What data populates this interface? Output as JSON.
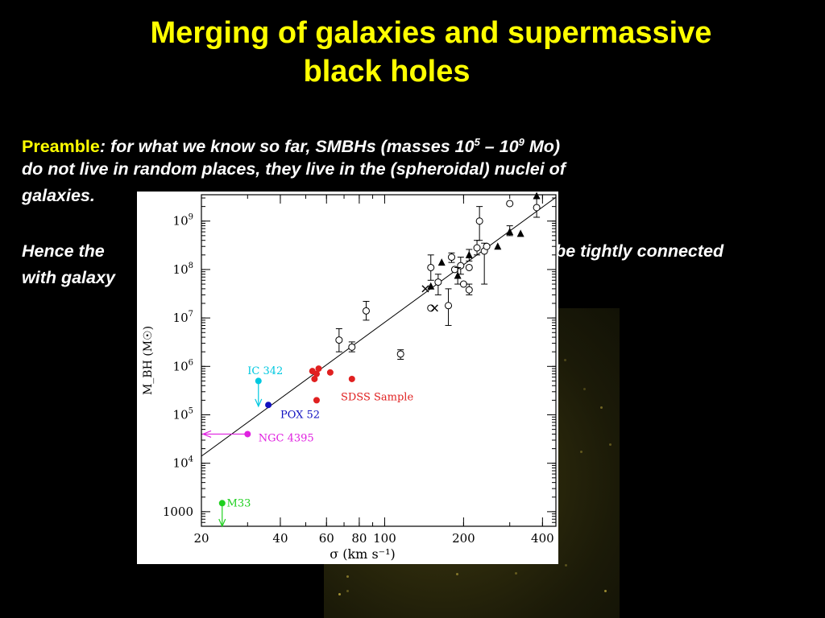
{
  "slide": {
    "title_lines": [
      "Merging of galaxies and supermassive",
      "black holes"
    ],
    "preamble_label": "Preamble",
    "preamble_line1_pre": ": for what we know so far, SMBHs (masses 10",
    "preamble_exp1": "5",
    "preamble_line1_mid": " – 10",
    "preamble_exp2": "9",
    "preamble_line1_post": " Mo)",
    "preamble_line2": "do not live in random places,  they live in the (spheroidal) nuclei of",
    "preamble_line3": "galaxies.",
    "hence_line1_left": "Hence the",
    "hence_line1_right": "st be tightly connected",
    "hence_line2": "with galaxy"
  },
  "chart_data": {
    "type": "scatter",
    "xlabel": "σ (km s⁻¹)",
    "ylabel": "M_BH (M☉)",
    "x_scale": "log",
    "y_scale": "log",
    "xlim": [
      20,
      450
    ],
    "ylim": [
      500,
      3500000000
    ],
    "x_tick_labels": [
      {
        "value": 20,
        "label": "20"
      },
      {
        "value": 40,
        "label": "40"
      },
      {
        "value": 60,
        "label": "60"
      },
      {
        "value": 80,
        "label": "80"
      },
      {
        "value": 100,
        "label": "100"
      },
      {
        "value": 200,
        "label": "200"
      },
      {
        "value": 400,
        "label": "400"
      }
    ],
    "y_tick_labels": [
      {
        "value": 1000,
        "label": "1000"
      },
      {
        "value": 10000,
        "label": "10",
        "exp": "4"
      },
      {
        "value": 100000,
        "label": "10",
        "exp": "5"
      },
      {
        "value": 1000000,
        "label": "10",
        "exp": "6"
      },
      {
        "value": 10000000,
        "label": "10",
        "exp": "7"
      },
      {
        "value": 100000000,
        "label": "10",
        "exp": "8"
      },
      {
        "value": 1000000000,
        "label": "10",
        "exp": "9"
      }
    ],
    "fit_line": {
      "x": [
        20,
        450
      ],
      "y": [
        14000,
        3100000000
      ]
    },
    "series": [
      {
        "marker": "open-circle",
        "color": "#000000",
        "points": [
          {
            "x": 67,
            "y": 3500000,
            "err": [
              2000000,
              6000000
            ]
          },
          {
            "x": 75,
            "y": 2500000,
            "err": [
              2000000,
              3200000
            ]
          },
          {
            "x": 85,
            "y": 14000000,
            "err": [
              9000000,
              22000000
            ]
          },
          {
            "x": 115,
            "y": 1800000,
            "err": [
              1400000,
              2200000
            ]
          },
          {
            "x": 150,
            "y": 110000000,
            "err": [
              60000000,
              200000000
            ]
          },
          {
            "x": 150,
            "y": 16000000
          },
          {
            "x": 160,
            "y": 55000000,
            "err": [
              30000000,
              80000000
            ]
          },
          {
            "x": 175,
            "y": 18000000,
            "err": [
              7000000,
              40000000
            ]
          },
          {
            "x": 180,
            "y": 180000000,
            "err": [
              140000000,
              220000000
            ]
          },
          {
            "x": 185,
            "y": 100000000
          },
          {
            "x": 195,
            "y": 120000000,
            "err": [
              80000000,
              180000000
            ]
          },
          {
            "x": 200,
            "y": 50000000
          },
          {
            "x": 210,
            "y": 110000000
          },
          {
            "x": 210,
            "y": 38000000,
            "err": [
              30000000,
              50000000
            ]
          },
          {
            "x": 225,
            "y": 280000000,
            "err": [
              200000000,
              400000000
            ]
          },
          {
            "x": 230,
            "y": 1000000000,
            "err": [
              400000000,
              2000000000
            ]
          },
          {
            "x": 240,
            "y": 240000000,
            "err": [
              50000000,
              350000000
            ]
          },
          {
            "x": 245,
            "y": 300000000
          },
          {
            "x": 300,
            "y": 2300000000
          },
          {
            "x": 380,
            "y": 1900000000,
            "err": [
              1200000000,
              3000000000
            ]
          }
        ]
      },
      {
        "marker": "filled-triangle",
        "color": "#000000",
        "points": [
          {
            "x": 150,
            "y": 45000000
          },
          {
            "x": 165,
            "y": 140000000
          },
          {
            "x": 190,
            "y": 75000000,
            "err": [
              50000000,
              110000000
            ]
          },
          {
            "x": 210,
            "y": 200000000,
            "err": [
              150000000,
              260000000
            ]
          },
          {
            "x": 270,
            "y": 300000000
          },
          {
            "x": 300,
            "y": 600000000,
            "err": [
              500000000,
              800000000
            ]
          },
          {
            "x": 330,
            "y": 550000000
          },
          {
            "x": 380,
            "y": 3300000000
          }
        ]
      },
      {
        "marker": "cross",
        "color": "#000000",
        "points": [
          {
            "x": 143,
            "y": 40000000
          },
          {
            "x": 155,
            "y": 16000000
          }
        ]
      },
      {
        "name": "SDSS Sample",
        "marker": "filled-circle",
        "color": "#e02020",
        "points": [
          {
            "x": 53,
            "y": 800000
          },
          {
            "x": 54,
            "y": 550000
          },
          {
            "x": 55,
            "y": 700000
          },
          {
            "x": 56,
            "y": 900000
          },
          {
            "x": 55,
            "y": 200000
          },
          {
            "x": 62,
            "y": 750000
          },
          {
            "x": 75,
            "y": 550000
          }
        ]
      },
      {
        "name": "IC 342",
        "marker": "filled-circle",
        "color": "#00c8e0",
        "points": [
          {
            "x": 33,
            "y": 500000,
            "upper_limit_to": 150000
          }
        ]
      },
      {
        "name": "POX 52",
        "marker": "filled-circle",
        "color": "#1010c0",
        "points": [
          {
            "x": 36,
            "y": 160000
          }
        ]
      },
      {
        "name": "NGC 4395",
        "marker": "filled-circle",
        "color": "#e020e0",
        "points": [
          {
            "x": 30,
            "y": 40000,
            "lower_limit_x_to": 20
          }
        ]
      },
      {
        "name": "M33",
        "marker": "filled-circle",
        "color": "#20d020",
        "points": [
          {
            "x": 24,
            "y": 1500,
            "upper_limit_to": 500
          }
        ]
      }
    ],
    "annotations": [
      {
        "text": "IC 342",
        "color": "#00c8e0",
        "x": 30,
        "y": 800000
      },
      {
        "text": "POX 52",
        "color": "#1010c0",
        "x": 40,
        "y": 100000
      },
      {
        "text": "NGC 4395",
        "color": "#e020e0",
        "x": 33,
        "y": 33000
      },
      {
        "text": "M33",
        "color": "#20d020",
        "x": 25,
        "y": 1500
      },
      {
        "text": "SDSS Sample",
        "color": "#e02020",
        "x": 68,
        "y": 230000
      }
    ],
    "colors": {
      "axis": "#000000",
      "background": "#ffffff"
    }
  }
}
